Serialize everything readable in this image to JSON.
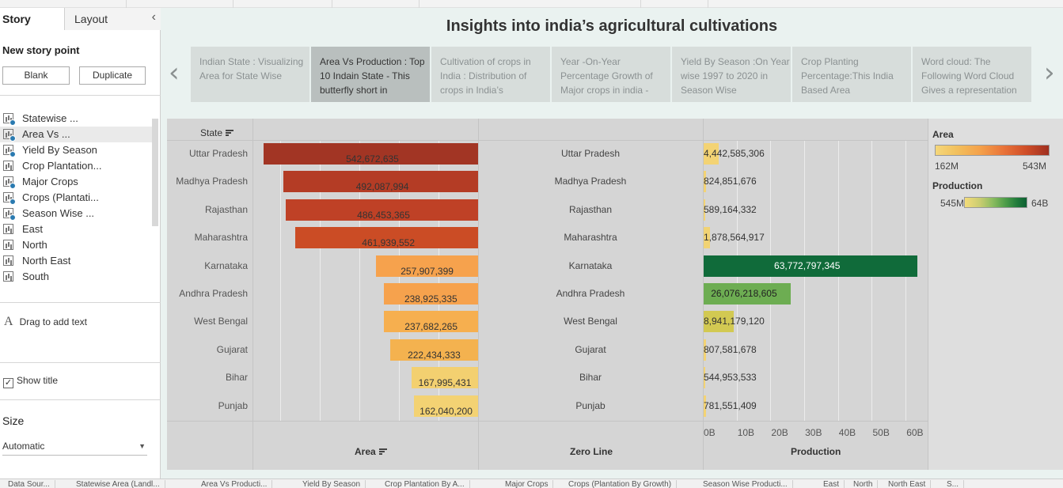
{
  "left_pane": {
    "tab_story": "Story",
    "tab_layout": "Layout",
    "collapse_icon": "chevron-left-icon",
    "new_story_point": "New story point",
    "blank_button": "Blank",
    "duplicate_button": "Duplicate",
    "story_points": [
      {
        "label": "Statewise ...",
        "checked": true,
        "selected": false
      },
      {
        "label": "Area Vs ...",
        "checked": true,
        "selected": true
      },
      {
        "label": "Yield By Season",
        "checked": true,
        "selected": false
      },
      {
        "label": "Crop Plantation...",
        "checked": false,
        "selected": false
      },
      {
        "label": "Major Crops",
        "checked": true,
        "selected": false
      },
      {
        "label": "Crops (Plantati...",
        "checked": true,
        "selected": false
      },
      {
        "label": "Season Wise ...",
        "checked": true,
        "selected": false
      },
      {
        "label": "East",
        "checked": false,
        "selected": false
      },
      {
        "label": "North",
        "checked": false,
        "selected": false
      },
      {
        "label": "North East",
        "checked": false,
        "selected": false
      },
      {
        "label": "South",
        "checked": false,
        "selected": false
      }
    ],
    "drag_text": "Drag to add text",
    "drag_icon": "A",
    "show_title": "Show title",
    "show_title_checked": "✓",
    "size_label": "Size",
    "size_value": "Automatic"
  },
  "story": {
    "title": "Insights into india’s agricultural cultivations",
    "prev_arrow": "‹",
    "next_arrow": "›",
    "points": [
      {
        "text": "Indian State : Visualizing Area for State Wise",
        "active": false
      },
      {
        "text": "Area Vs Production : Top 10 Indain State - This butterfly short in",
        "active": true
      },
      {
        "text": "Cultivation of crops in India : Distribution of crops in India’s",
        "active": false
      },
      {
        "text": "Year -On-Year Percentage Growth of Major crops in india -",
        "active": false
      },
      {
        "text": "Yield By Season :On Year wise 1997 to 2020 in Season Wise",
        "active": false
      },
      {
        "text": "Crop Planting Percentage:This India Based Area",
        "active": false
      },
      {
        "text": "Word cloud: The Following Word Cloud Gives a representation",
        "active": false
      }
    ]
  },
  "viz": {
    "state_header": "State",
    "area_axis_title": "Area",
    "zero_line_title": "Zero Line",
    "production_axis_title": "Production",
    "production_ticks": [
      "0B",
      "10B",
      "20B",
      "30B",
      "40B",
      "50B",
      "60B"
    ],
    "legend": {
      "area_title": "Area",
      "area_min": "162M",
      "area_max": "543M",
      "production_title": "Production",
      "production_min": "545M",
      "production_max": "64B"
    }
  },
  "chart_data": {
    "type": "bar",
    "categories": [
      "Uttar Pradesh",
      "Madhya Pradesh",
      "Rajasthan",
      "Maharashtra",
      "Karnataka",
      "Andhra Pradesh",
      "West Bengal",
      "Gujarat",
      "Bihar",
      "Punjab"
    ],
    "series": [
      {
        "name": "Area",
        "values": [
          542672635,
          492087994,
          486453365,
          461939552,
          257907399,
          238925335,
          237682265,
          222434333,
          167995431,
          162040200
        ],
        "labels": [
          "542,672,635",
          "492,087,994",
          "486,453,365",
          "461,939,552",
          "257,907,399",
          "238,925,335",
          "237,682,265",
          "222,434,333",
          "167,995,431",
          "162,040,200"
        ]
      },
      {
        "name": "Production",
        "values": [
          4442585306,
          824851676,
          589164332,
          1878564917,
          63772797345,
          26076218605,
          8941179120,
          807581678,
          544953533,
          781551409
        ],
        "labels": [
          "4,442,585,306",
          "824,851,676",
          "589,164,332",
          "1,878,564,917",
          "63,772,797,345",
          "26,076,218,605",
          "8,941,179,120",
          "807,581,678",
          "544,953,533",
          "781,551,409"
        ]
      }
    ],
    "production_range": [
      0,
      65000000000
    ],
    "colors": {
      "area": [
        "#a23524",
        "#b43c25",
        "#bf4126",
        "#cb4c25",
        "#f6a24d",
        "#f6a24d",
        "#f6af4f",
        "#f4b24f",
        "#f3d070",
        "#f3d273"
      ],
      "production": [
        "#f3d374",
        "#f3d374",
        "#f3d374",
        "#f1d374",
        "#106b3a",
        "#6dad52",
        "#d2c952",
        "#f3d374",
        "#f3d374",
        "#f3d374"
      ]
    }
  },
  "bottom_tabs": [
    "Data Sour...",
    "Statewise Area (Landl...",
    "Area Vs Producti...",
    "Yield By Season",
    "Crop Plantation By A...",
    "Major Crops",
    "Crops (Plantation By Growth)",
    "Season Wise Producti...",
    "East",
    "North",
    "North East",
    "S..."
  ]
}
